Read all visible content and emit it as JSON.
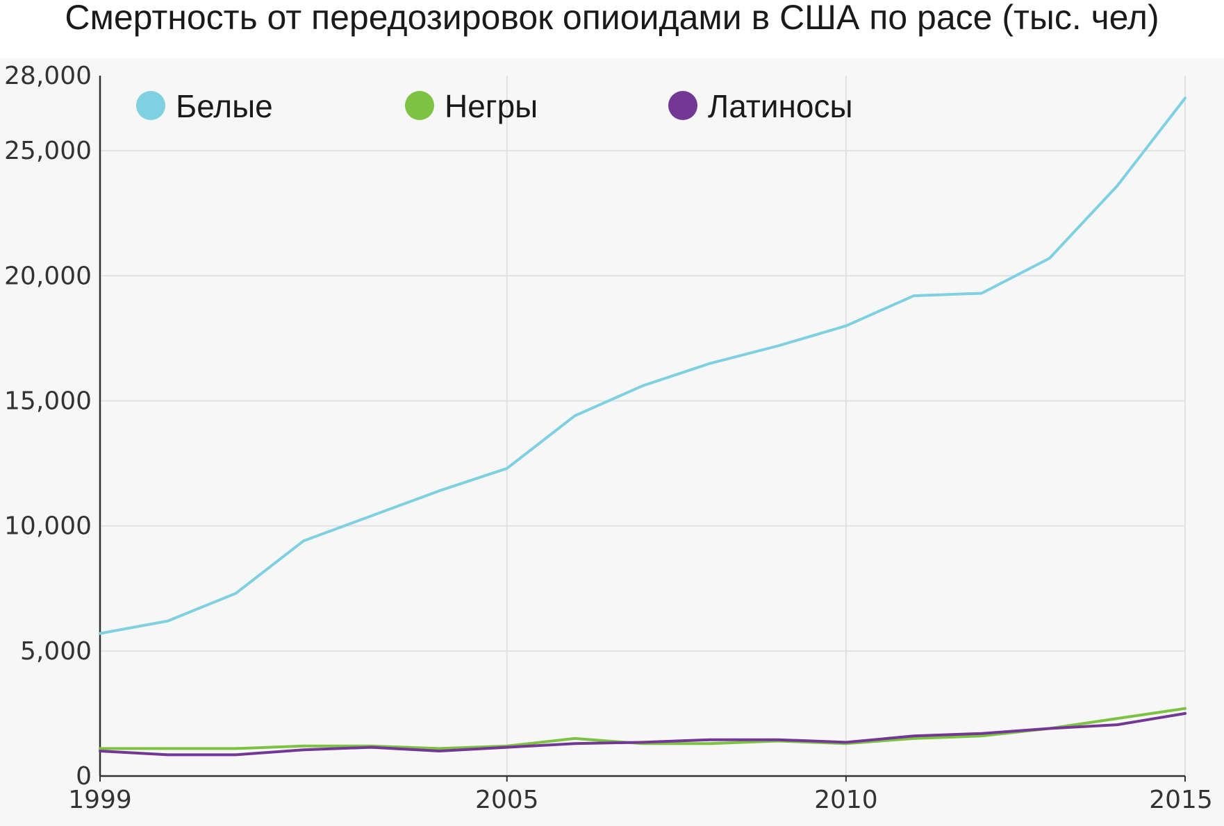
{
  "colors": {
    "white": "#7fd1e1",
    "black": "#7cc243",
    "hispanic": "#733796",
    "grid": "#e2e2e2",
    "axis": "#333333",
    "background": "#f7f7f7"
  },
  "chart_data": {
    "type": "line",
    "title": "Смертность от передозировок опиоидами в США по расе (тыс. чел)",
    "xlabel": "",
    "ylabel": "",
    "xlim": [
      1999,
      2015
    ],
    "ylim": [
      0,
      28000
    ],
    "x_ticks": [
      1999,
      2005,
      2010,
      2015
    ],
    "x_tick_labels": [
      "1999",
      "2005",
      "2010",
      "2015"
    ],
    "y_ticks": [
      0,
      5000,
      10000,
      15000,
      20000,
      25000,
      28000
    ],
    "y_tick_labels": [
      "0",
      "5,000",
      "10,000",
      "15,000",
      "20,000",
      "25,000",
      "28,000"
    ],
    "grid": true,
    "legend_position": "top",
    "x": [
      1999,
      2000,
      2001,
      2002,
      2003,
      2004,
      2005,
      2006,
      2007,
      2008,
      2009,
      2010,
      2011,
      2012,
      2013,
      2014,
      2015
    ],
    "series": [
      {
        "name": "Белые",
        "color_key": "white",
        "values": [
          5700,
          6200,
          7300,
          9400,
          10400,
          11400,
          12300,
          14400,
          15600,
          16500,
          17200,
          18000,
          19200,
          19300,
          20700,
          23600,
          27100
        ]
      },
      {
        "name": "Негры",
        "color_key": "black",
        "values": [
          1100,
          1100,
          1100,
          1200,
          1200,
          1100,
          1200,
          1500,
          1300,
          1300,
          1400,
          1300,
          1500,
          1600,
          1900,
          2300,
          2700
        ]
      },
      {
        "name": "Латиносы",
        "color_key": "hispanic",
        "values": [
          1000,
          850,
          850,
          1050,
          1150,
          1000,
          1150,
          1300,
          1350,
          1450,
          1450,
          1350,
          1600,
          1700,
          1900,
          2050,
          2500
        ]
      }
    ]
  }
}
